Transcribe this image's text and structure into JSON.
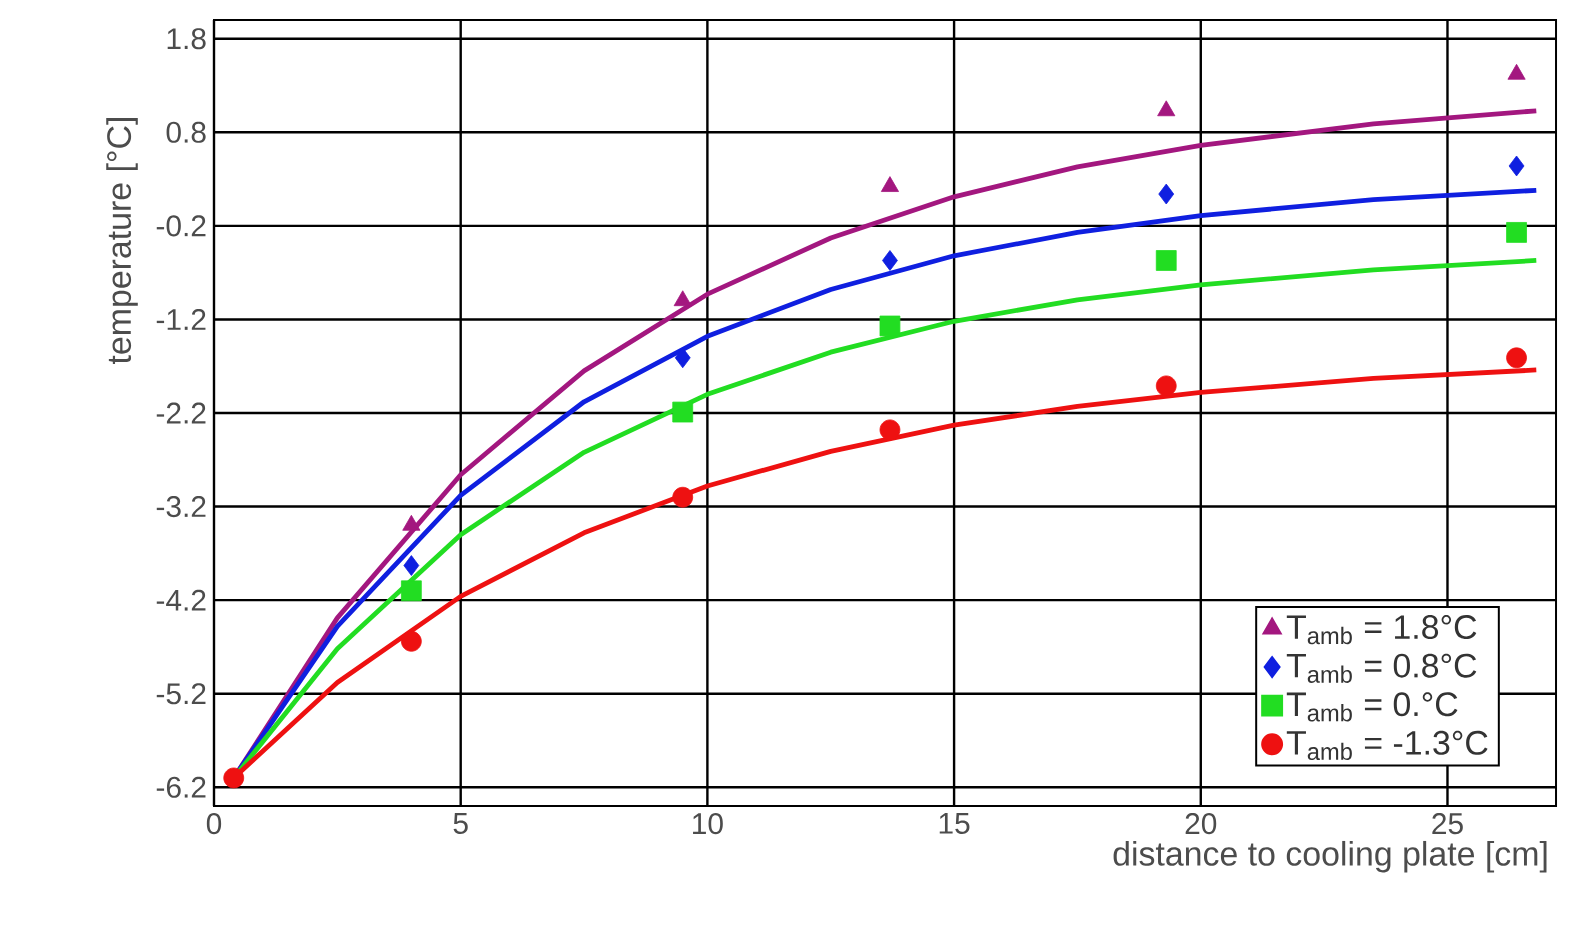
{
  "chart_data": {
    "type": "scatter",
    "xlabel": "distance to cooling plate [cm]",
    "ylabel": "temperature [°C]",
    "xlim": [
      0,
      27.2
    ],
    "ylim": [
      -6.4,
      2.0
    ],
    "xticks": [
      0,
      5,
      10,
      15,
      20,
      25
    ],
    "yticks": [
      1.8,
      0.8,
      -0.2,
      -1.2,
      -2.2,
      -3.2,
      -4.2,
      -5.2,
      -6.2
    ],
    "grid": true,
    "legend": "bottom right",
    "series": [
      {
        "name": "T$_{amb}$ = 1.8°C",
        "color": "#a3177f",
        "marker": "triangle",
        "x": [
          4,
          9.5,
          13.7,
          19.3,
          26.4
        ],
        "values": [
          -3.4,
          -1.0,
          0.22,
          1.03,
          1.42
        ]
      },
      {
        "name": "T$_{amb}$ = 0.8°C",
        "color": "#0f1fe0",
        "marker": "diamond",
        "x": [
          4,
          9.5,
          13.7,
          19.3,
          26.4
        ],
        "values": [
          -3.83,
          -1.61,
          -0.57,
          0.14,
          0.44
        ]
      },
      {
        "name": "T$_{amb}$ = 0.°C",
        "color": "#22dd22",
        "marker": "square",
        "x": [
          4,
          9.5,
          13.7,
          19.3,
          26.4
        ],
        "values": [
          -4.1,
          -2.19,
          -1.27,
          -0.57,
          -0.27
        ]
      },
      {
        "name": "T$_{amb}$ = -1.3°C",
        "color": "#ee1111",
        "marker": "circle",
        "x": [
          0.4,
          4,
          9.5,
          13.7,
          19.3,
          26.4
        ],
        "values": [
          -6.1,
          -4.64,
          -3.1,
          -2.38,
          -1.91,
          -1.61
        ]
      },
      {
        "type": "line",
        "color": "#a3177f",
        "x": [
          0.4,
          2.5,
          5,
          7.5,
          10,
          12.5,
          15,
          17.5,
          20,
          23.5,
          26.8
        ],
        "values": [
          -6.1,
          -4.39,
          -2.86,
          -1.75,
          -0.93,
          -0.33,
          0.11,
          0.43,
          0.66,
          0.89,
          1.03
        ]
      },
      {
        "type": "line",
        "color": "#0f1fe0",
        "x": [
          0.4,
          2.5,
          5,
          7.5,
          10,
          12.5,
          15,
          17.5,
          20,
          23.5,
          26.8
        ],
        "values": [
          -6.1,
          -4.48,
          -3.08,
          -2.08,
          -1.38,
          -0.88,
          -0.52,
          -0.27,
          -0.09,
          0.08,
          0.18
        ]
      },
      {
        "type": "line",
        "color": "#22dd22",
        "x": [
          0.4,
          2.5,
          5,
          7.5,
          10,
          12.5,
          15,
          17.5,
          20,
          23.5,
          26.8
        ],
        "values": [
          -6.1,
          -4.72,
          -3.5,
          -2.62,
          -2.0,
          -1.55,
          -1.22,
          -0.99,
          -0.83,
          -0.67,
          -0.57
        ]
      },
      {
        "type": "line",
        "color": "#ee1111",
        "x": [
          0.4,
          2.5,
          5,
          7.5,
          10,
          12.5,
          15,
          17.5,
          20,
          23.5,
          26.8
        ],
        "values": [
          -6.1,
          -5.08,
          -4.16,
          -3.48,
          -2.98,
          -2.61,
          -2.33,
          -2.13,
          -1.98,
          -1.83,
          -1.74
        ]
      }
    ]
  }
}
